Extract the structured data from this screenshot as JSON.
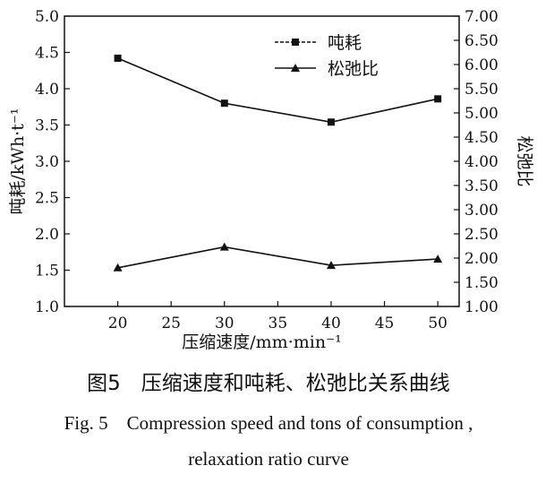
{
  "chart_data": {
    "type": "line",
    "xlabel": "压缩速度/mm·min⁻¹",
    "ylabel_left": "吨耗/kWh·t⁻¹",
    "ylabel_right": "松弛比",
    "x_ticks": [
      "20",
      "25",
      "30",
      "35",
      "40",
      "45",
      "50"
    ],
    "y_left_ticks": [
      "1.0",
      "1.5",
      "2.0",
      "2.5",
      "3.0",
      "3.5",
      "4.0",
      "4.5",
      "5.0"
    ],
    "y_right_ticks": [
      "1.00",
      "1.50",
      "2.00",
      "2.50",
      "3.00",
      "3.50",
      "4.00",
      "4.50",
      "5.00",
      "5.50",
      "6.00",
      "6.50",
      "7.00"
    ],
    "xlim": [
      15,
      52
    ],
    "ylim_left": [
      1.0,
      5.0
    ],
    "ylim_right": [
      1.0,
      7.0
    ],
    "grid": false,
    "legend_position": "top-right",
    "series": [
      {
        "name": "吨耗",
        "axis": "left",
        "marker": "square",
        "line_style": "dashed-solid",
        "x": [
          20,
          30,
          40,
          50
        ],
        "values": [
          4.42,
          3.8,
          3.54,
          3.86
        ]
      },
      {
        "name": "松弛比",
        "axis": "right",
        "marker": "triangle",
        "line_style": "solid",
        "x": [
          20,
          30,
          40,
          50
        ],
        "values": [
          1.8,
          2.23,
          1.85,
          1.98
        ]
      }
    ]
  },
  "caption": {
    "cn": "图5　压缩速度和吨耗、松弛比关系曲线",
    "en_line1": "Fig. 5　Compression speed and tons of consumption ,",
    "en_line2": "relaxation ratio curve"
  }
}
